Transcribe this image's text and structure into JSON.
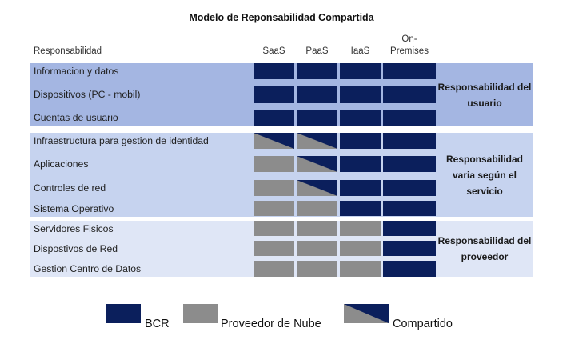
{
  "title": "Modelo de Reponsabilidad Compartida",
  "headers": {
    "responsibility": "Responsabilidad",
    "columns": [
      "SaaS",
      "PaaS",
      "IaaS",
      "On-\nPremises"
    ]
  },
  "colors": {
    "bcr": "#0b1f5c",
    "provider": "#8c8c8c",
    "user_band": "#a4b6e2",
    "varies_band": "#c6d3ef",
    "provider_band": "#dfe6f6",
    "row_label_bg": "#ffffff"
  },
  "legend": [
    {
      "key": "B",
      "label": "BCR"
    },
    {
      "key": "P",
      "label": "Proveedor de Nube"
    },
    {
      "key": "S",
      "label": "Compartido"
    }
  ],
  "groups": [
    {
      "label": "Responsabilidad del\nusuario"
    },
    {
      "label": "Responsabilidad\nvaria según el\nservicio"
    },
    {
      "label": "Responsabilidad del\nproveedor"
    }
  ],
  "rows": [
    {
      "label": "Informacion y datos",
      "cells": [
        "B",
        "B",
        "B",
        "B"
      ]
    },
    {
      "label": "Dispositivos (PC - mobil)",
      "cells": [
        "B",
        "B",
        "B",
        "B"
      ]
    },
    {
      "label": "Cuentas de usuario",
      "cells": [
        "B",
        "B",
        "B",
        "B"
      ]
    },
    {
      "label": "Infraestructura para gestion de identidad",
      "cells": [
        "S",
        "S",
        "B",
        "B"
      ]
    },
    {
      "label": "Aplicaciones",
      "cells": [
        "P",
        "S",
        "B",
        "B"
      ]
    },
    {
      "label": "Controles de red",
      "cells": [
        "P",
        "S",
        "B",
        "B"
      ]
    },
    {
      "label": "Sistema Operativo",
      "cells": [
        "P",
        "P",
        "B",
        "B"
      ]
    },
    {
      "label": "Servidores Fisicos",
      "cells": [
        "P",
        "P",
        "P",
        "B"
      ]
    },
    {
      "label": "Dispostivos de Red",
      "cells": [
        "P",
        "P",
        "P",
        "B"
      ]
    },
    {
      "label": "Gestion Centro de Datos",
      "cells": [
        "P",
        "P",
        "P",
        "B"
      ]
    }
  ]
}
